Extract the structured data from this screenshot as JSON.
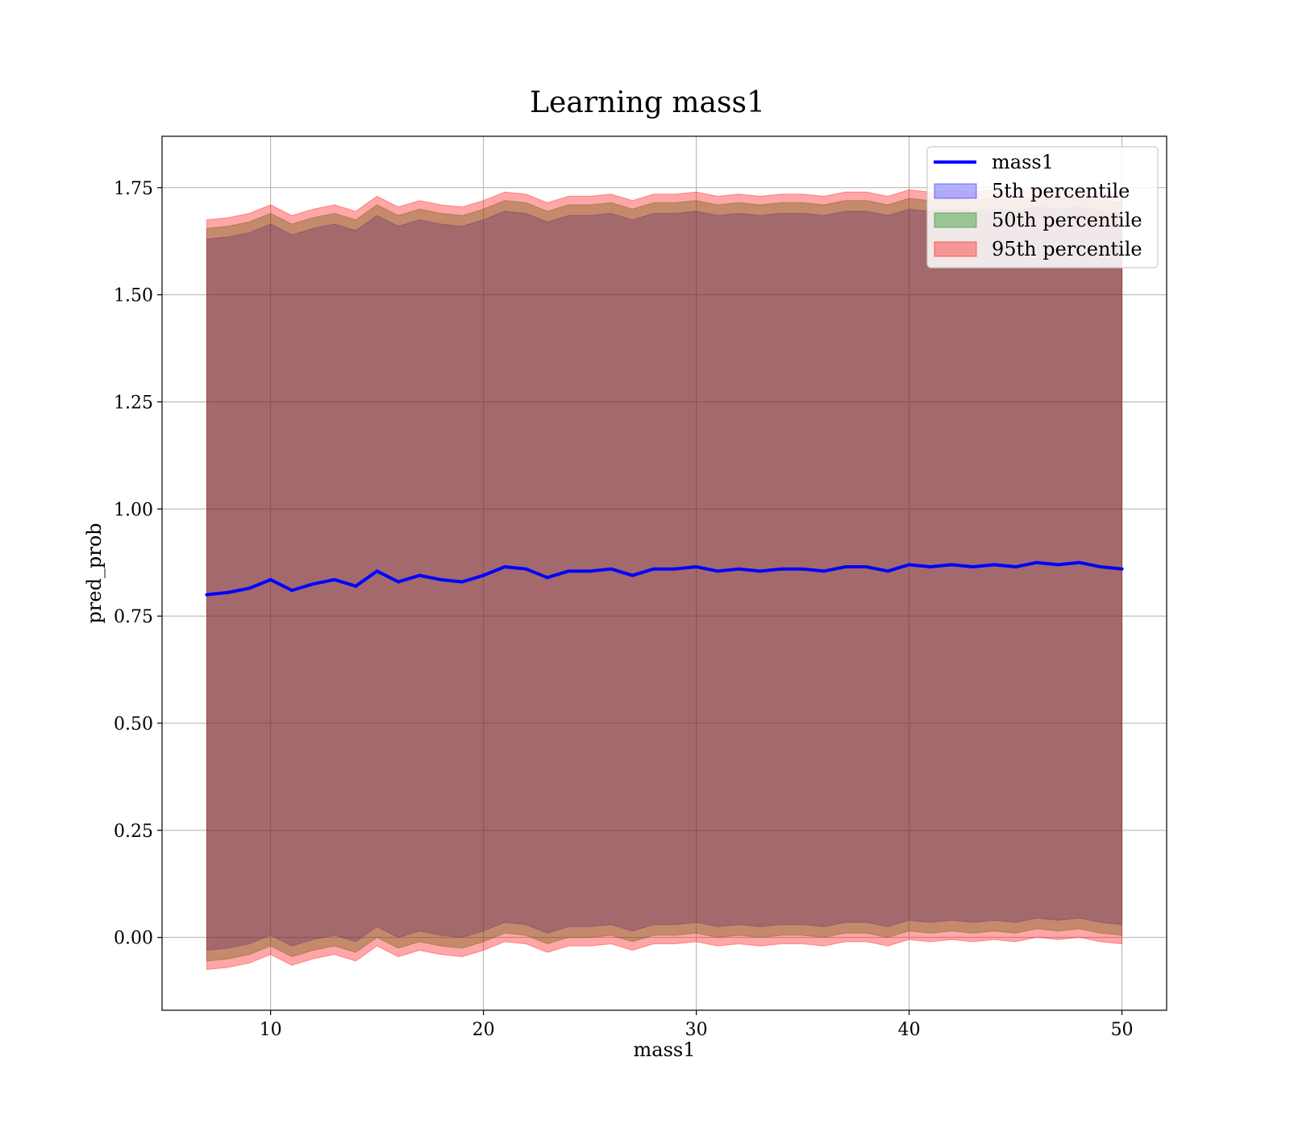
{
  "chart_data": {
    "type": "area",
    "title": "Learning mass1",
    "xlabel": "mass1",
    "ylabel": "pred_prob",
    "xlim": [
      4.9,
      52.1
    ],
    "ylim": [
      -0.17,
      1.87
    ],
    "grid": true,
    "legend_position": "top-right",
    "x_ticks": [
      10,
      20,
      30,
      40,
      50
    ],
    "x_tick_labels": [
      "10",
      "20",
      "30",
      "40",
      "50"
    ],
    "y_ticks": [
      0.0,
      0.25,
      0.5,
      0.75,
      1.0,
      1.25,
      1.5,
      1.75
    ],
    "y_tick_labels": [
      "0.00",
      "0.25",
      "0.50",
      "0.75",
      "1.00",
      "1.25",
      "1.50",
      "1.75"
    ],
    "x": [
      7,
      8,
      9,
      10,
      11,
      12,
      13,
      14,
      15,
      16,
      17,
      18,
      19,
      20,
      21,
      22,
      23,
      24,
      25,
      26,
      27,
      28,
      29,
      30,
      31,
      32,
      33,
      34,
      35,
      36,
      37,
      38,
      39,
      40,
      41,
      42,
      43,
      44,
      45,
      46,
      47,
      48,
      49,
      50
    ],
    "line": {
      "name": "mass1",
      "color": "#0000ff",
      "values": [
        0.8,
        0.805,
        0.815,
        0.835,
        0.81,
        0.825,
        0.835,
        0.82,
        0.855,
        0.83,
        0.845,
        0.835,
        0.83,
        0.845,
        0.865,
        0.86,
        0.84,
        0.855,
        0.855,
        0.86,
        0.845,
        0.86,
        0.86,
        0.865,
        0.855,
        0.86,
        0.855,
        0.86,
        0.86,
        0.855,
        0.865,
        0.865,
        0.855,
        0.87,
        0.865,
        0.87,
        0.865,
        0.87,
        0.865,
        0.875,
        0.87,
        0.875,
        0.865,
        0.86
      ]
    },
    "bands": [
      {
        "name": "5th percentile",
        "color": "#0000ff",
        "alpha": 0.3,
        "lower": [
          -0.03,
          -0.025,
          -0.015,
          0.005,
          -0.02,
          -0.005,
          0.005,
          -0.01,
          0.025,
          0.0,
          0.015,
          0.005,
          0.0,
          0.015,
          0.035,
          0.03,
          0.01,
          0.025,
          0.025,
          0.03,
          0.015,
          0.03,
          0.03,
          0.035,
          0.025,
          0.03,
          0.025,
          0.03,
          0.03,
          0.025,
          0.035,
          0.035,
          0.025,
          0.04,
          0.035,
          0.04,
          0.035,
          0.04,
          0.035,
          0.045,
          0.04,
          0.045,
          0.035,
          0.03
        ],
        "upper": [
          1.63,
          1.635,
          1.645,
          1.665,
          1.64,
          1.655,
          1.665,
          1.65,
          1.685,
          1.66,
          1.675,
          1.665,
          1.66,
          1.675,
          1.695,
          1.69,
          1.67,
          1.685,
          1.685,
          1.69,
          1.675,
          1.69,
          1.69,
          1.695,
          1.685,
          1.69,
          1.685,
          1.69,
          1.69,
          1.685,
          1.695,
          1.695,
          1.685,
          1.7,
          1.695,
          1.7,
          1.695,
          1.7,
          1.695,
          1.705,
          1.7,
          1.705,
          1.695,
          1.69
        ]
      },
      {
        "name": "50th percentile",
        "color": "#008000",
        "alpha": 0.35,
        "lower": [
          -0.055,
          -0.05,
          -0.04,
          -0.02,
          -0.045,
          -0.03,
          -0.02,
          -0.035,
          0.0,
          -0.025,
          -0.01,
          -0.02,
          -0.025,
          -0.01,
          0.01,
          0.005,
          -0.015,
          0.0,
          0.0,
          0.005,
          -0.01,
          0.005,
          0.005,
          0.01,
          0.0,
          0.005,
          0.0,
          0.005,
          0.005,
          0.0,
          0.01,
          0.01,
          0.0,
          0.015,
          0.01,
          0.015,
          0.01,
          0.015,
          0.01,
          0.02,
          0.015,
          0.02,
          0.01,
          0.005
        ],
        "upper": [
          1.655,
          1.66,
          1.67,
          1.69,
          1.665,
          1.68,
          1.69,
          1.675,
          1.71,
          1.685,
          1.7,
          1.69,
          1.685,
          1.7,
          1.72,
          1.715,
          1.695,
          1.71,
          1.71,
          1.715,
          1.7,
          1.715,
          1.715,
          1.72,
          1.71,
          1.715,
          1.71,
          1.715,
          1.715,
          1.71,
          1.72,
          1.72,
          1.71,
          1.725,
          1.72,
          1.725,
          1.72,
          1.725,
          1.72,
          1.73,
          1.725,
          1.73,
          1.72,
          1.715
        ]
      },
      {
        "name": "95th percentile",
        "color": "#ff0000",
        "alpha": 0.35,
        "lower": [
          -0.075,
          -0.07,
          -0.06,
          -0.04,
          -0.065,
          -0.05,
          -0.04,
          -0.055,
          -0.02,
          -0.045,
          -0.03,
          -0.04,
          -0.045,
          -0.03,
          -0.01,
          -0.015,
          -0.035,
          -0.02,
          -0.02,
          -0.015,
          -0.03,
          -0.015,
          -0.015,
          -0.01,
          -0.02,
          -0.015,
          -0.02,
          -0.015,
          -0.015,
          -0.02,
          -0.01,
          -0.01,
          -0.02,
          -0.005,
          -0.01,
          -0.005,
          -0.01,
          -0.005,
          -0.01,
          0.0,
          -0.005,
          0.0,
          -0.01,
          -0.015
        ],
        "upper": [
          1.675,
          1.68,
          1.69,
          1.71,
          1.685,
          1.7,
          1.71,
          1.695,
          1.73,
          1.705,
          1.72,
          1.71,
          1.705,
          1.72,
          1.74,
          1.735,
          1.715,
          1.73,
          1.73,
          1.735,
          1.72,
          1.735,
          1.735,
          1.74,
          1.73,
          1.735,
          1.73,
          1.735,
          1.735,
          1.73,
          1.74,
          1.74,
          1.73,
          1.745,
          1.74,
          1.745,
          1.74,
          1.745,
          1.74,
          1.75,
          1.745,
          1.75,
          1.74,
          1.735
        ]
      }
    ]
  }
}
